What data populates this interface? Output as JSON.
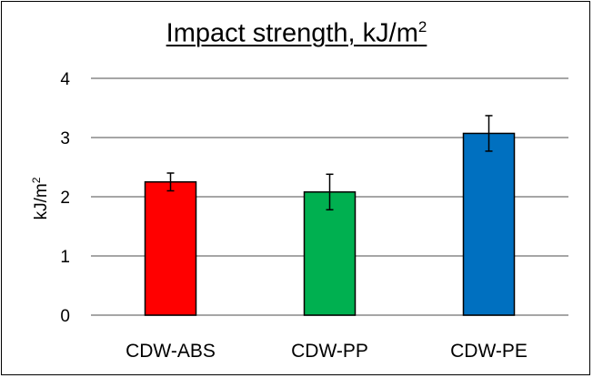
{
  "chart_data": {
    "type": "bar",
    "title": "Impact strength, kJ/m",
    "title_sup": "2",
    "ylabel": "kJ/m",
    "ylabel_sup": "2",
    "xlabel": "",
    "ylim": [
      0,
      4
    ],
    "yticks": [
      "0",
      "1",
      "2",
      "3",
      "4"
    ],
    "grid": true,
    "categories": [
      "CDW-ABS",
      "CDW-PP",
      "CDW-PE"
    ],
    "values": [
      2.25,
      2.08,
      3.07
    ],
    "errors": [
      0.15,
      0.3,
      0.3
    ],
    "colors": [
      "#ff0000",
      "#00b050",
      "#0070c0"
    ]
  }
}
